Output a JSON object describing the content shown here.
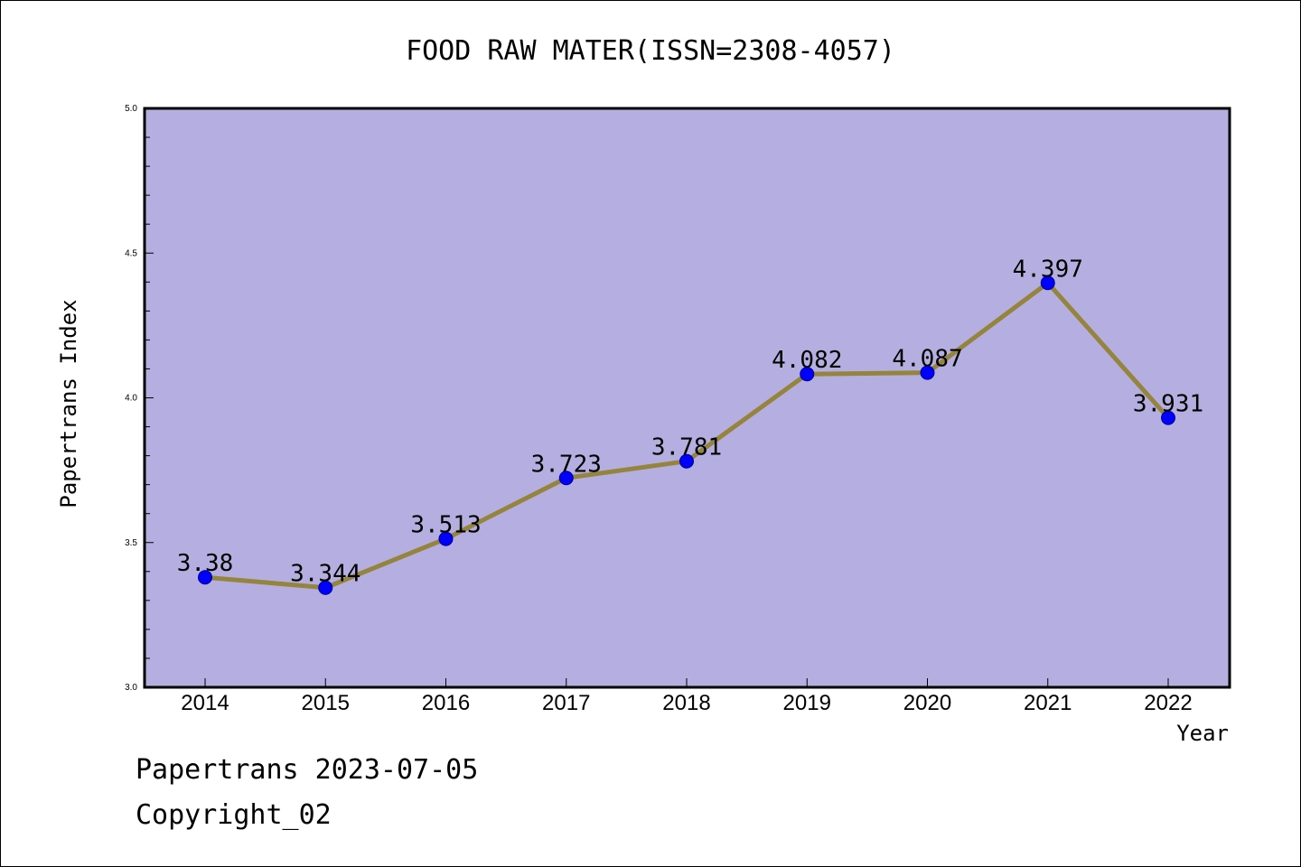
{
  "chart_data": {
    "type": "line",
    "title": "FOOD RAW MATER(ISSN=2308-4057)",
    "xlabel": "Year",
    "ylabel": "Papertrans Index",
    "categories": [
      "2014",
      "2015",
      "2016",
      "2017",
      "2018",
      "2019",
      "2020",
      "2021",
      "2022"
    ],
    "values": [
      3.38,
      3.344,
      3.513,
      3.723,
      3.781,
      4.082,
      4.087,
      4.397,
      3.931
    ],
    "data_labels": [
      "3.38",
      "3.344",
      "3.513",
      "3.723",
      "3.781",
      "4.082",
      "4.087",
      "4.397",
      "3.931"
    ],
    "ylim": [
      3.0,
      5.0
    ],
    "yticks": [
      "3.0",
      "3.5",
      "4.0",
      "4.5",
      "5.0"
    ],
    "grid": false,
    "colors": {
      "plot_background": "#b5afe1",
      "line": "#94843c",
      "marker": "#0000ff"
    }
  },
  "footer": {
    "line1": "Papertrans 2023-07-05",
    "line2": "Copyright_02"
  }
}
